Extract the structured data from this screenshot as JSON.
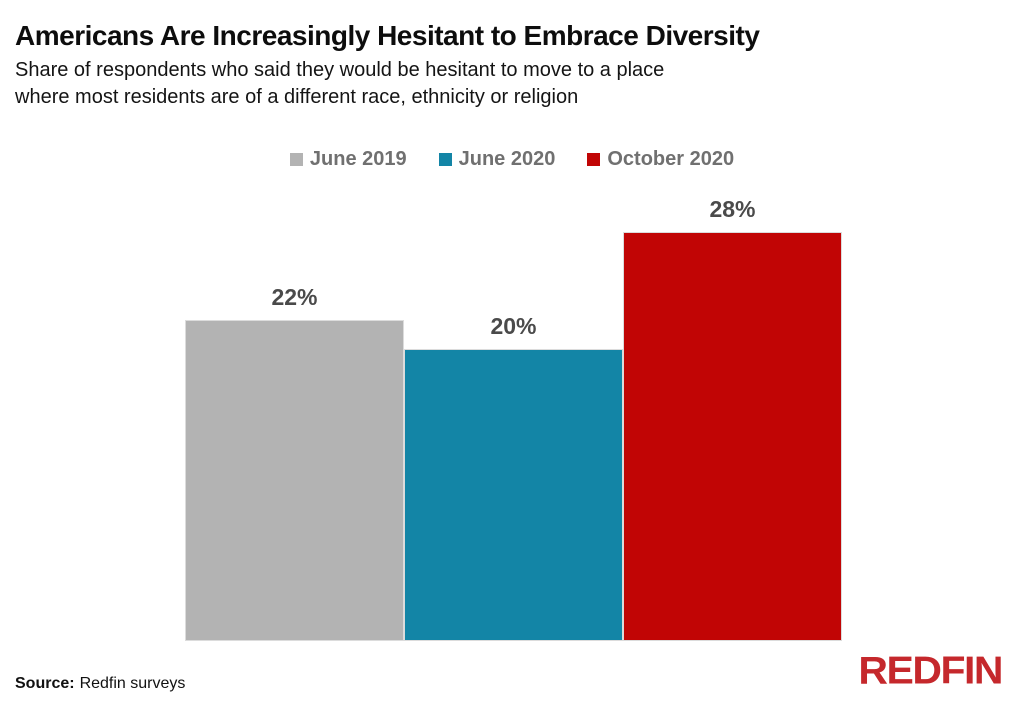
{
  "header": {
    "title": "Americans Are Increasingly Hesitant to Embrace Diversity",
    "subtitle_line1": "Share of respondents who said they would be hesitant to move to a place",
    "subtitle_line2": "where most residents are of a different race, ethnicity or religion"
  },
  "chart_data": {
    "type": "bar",
    "title": "Americans Are Increasingly Hesitant to Embrace Diversity",
    "subtitle": "Share of respondents who said they would be hesitant to move to a place where most residents are of a different race, ethnicity or religion",
    "categories": [
      "June 2019",
      "June 2020",
      "October 2020"
    ],
    "values": [
      22,
      20,
      28
    ],
    "data_labels": [
      "22%",
      "20%",
      "28%"
    ],
    "colors": [
      "#b3b3b3",
      "#1385a6",
      "#c10505"
    ],
    "xlabel": "",
    "ylabel": "",
    "unit": "%",
    "grid": false,
    "axes_visible": false,
    "legend_position": "top"
  },
  "legend": {
    "items": [
      {
        "label": "June 2019",
        "color": "#b3b3b3"
      },
      {
        "label": "June 2020",
        "color": "#1385a6"
      },
      {
        "label": "October 2020",
        "color": "#c10505"
      }
    ]
  },
  "footer": {
    "source_label": "Source:",
    "source_text": "Redfin surveys",
    "logo_text": "REDFIN",
    "logo_color": "#c5282c"
  }
}
